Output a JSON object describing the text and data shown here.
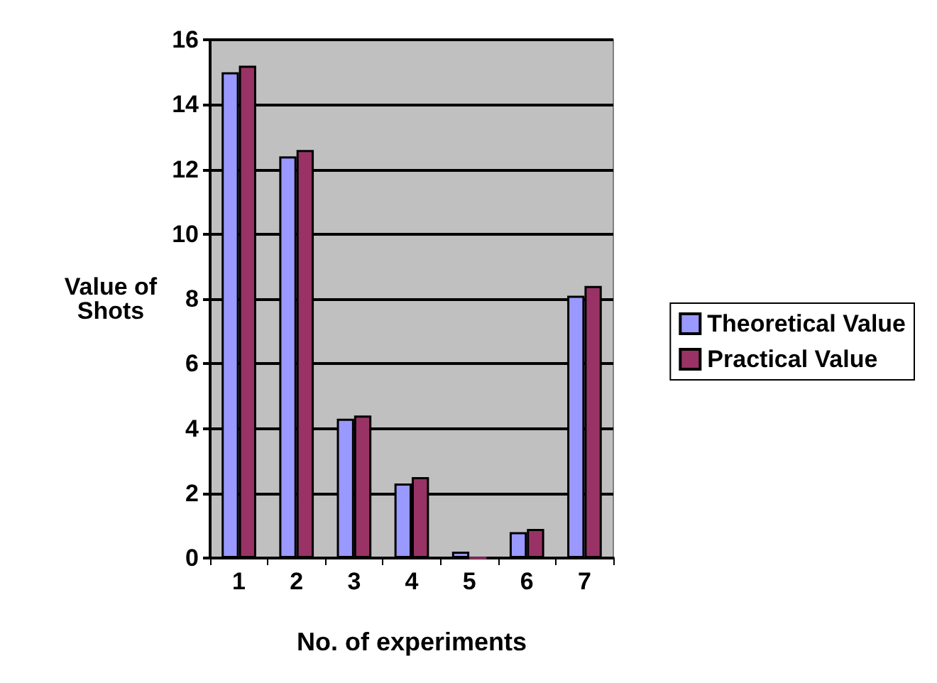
{
  "chart_data": {
    "type": "bar",
    "xlabel": "No. of experiments",
    "ylabel": "Value of\nShots",
    "categories": [
      "1",
      "2",
      "3",
      "4",
      "5",
      "6",
      "7"
    ],
    "series": [
      {
        "name": "Theoretical Value",
        "color": "#9999ff",
        "values": [
          15,
          12.4,
          4.3,
          2.3,
          0.2,
          0.8,
          8.1
        ]
      },
      {
        "name": "Practical Value",
        "color": "#993366",
        "values": [
          15.2,
          12.6,
          4.4,
          2.5,
          0,
          0.9,
          8.4
        ]
      }
    ],
    "ylim": [
      0,
      16
    ],
    "yticks": [
      0,
      2,
      4,
      6,
      8,
      10,
      12,
      14,
      16
    ],
    "grid": "y",
    "legend": "right"
  }
}
